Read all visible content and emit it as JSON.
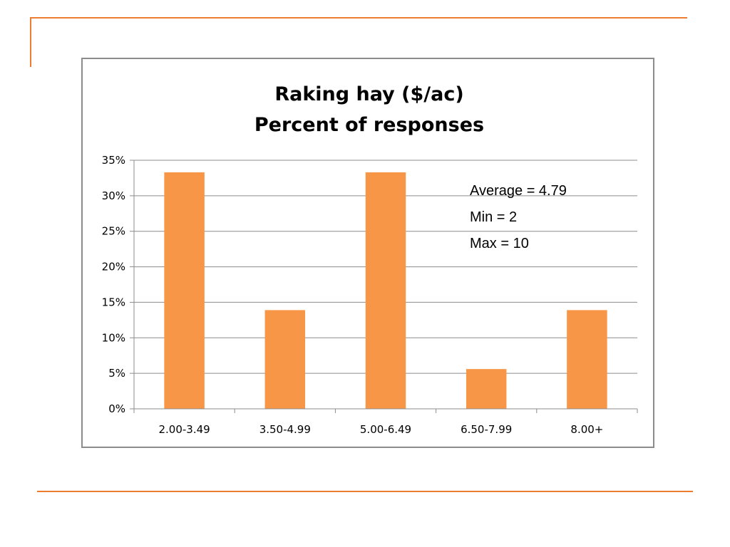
{
  "slide": {
    "accent_color": "#ed7d31"
  },
  "chart_data": {
    "type": "bar",
    "title": "Raking hay ($/ac)",
    "subtitle": "Percent of responses",
    "categories": [
      "2.00-3.49",
      "3.50-4.99",
      "5.00-6.49",
      "6.50-7.99",
      "8.00+"
    ],
    "values": [
      33.3,
      13.9,
      33.3,
      5.6,
      13.9
    ],
    "ylim": [
      0,
      35
    ],
    "yticks": [
      0,
      5,
      10,
      15,
      20,
      25,
      30,
      35
    ],
    "ytick_labels": [
      "0%",
      "5%",
      "10%",
      "15%",
      "20%",
      "25%",
      "30%",
      "35%"
    ],
    "xlabel": "",
    "ylabel": "",
    "grid": true,
    "bar_color": "#f79646",
    "annotations": [
      "Average = 4.79",
      "Min = 2",
      "Max = 10"
    ]
  }
}
